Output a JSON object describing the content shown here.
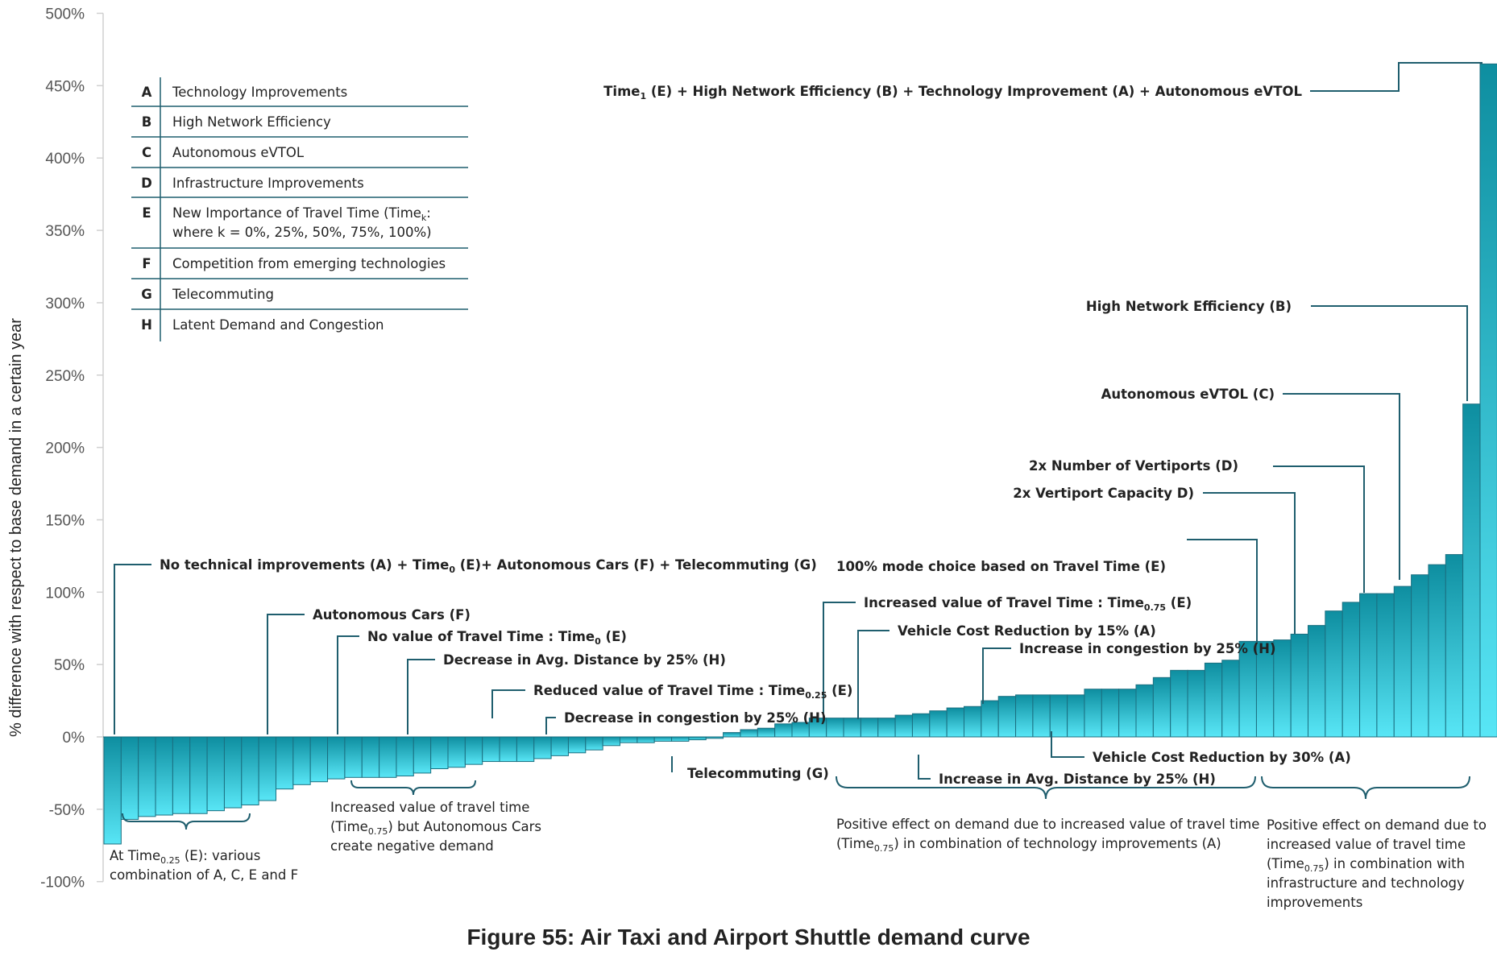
{
  "figure_caption": "Figure 55: Air Taxi and Airport Shuttle demand curve",
  "colors": {
    "bar_top": "#0e8ea0",
    "bar_bottom": "#58e6f6",
    "bar_outline": "#1b6f80",
    "leader": "#1f5e6e",
    "text": "#222222"
  },
  "chart_data": {
    "type": "bar",
    "ylabel": "% difference with respect to base  demand in a certain year",
    "ylim": [
      -100,
      500
    ],
    "y_ticks": [
      "500%",
      "450%",
      "400%",
      "350%",
      "300%",
      "250%",
      "200%",
      "150%",
      "100%",
      "50%",
      "0%",
      "-50%",
      "-100%"
    ],
    "grid": false,
    "legend_position": "top-left",
    "values": [
      -74,
      -57,
      -55,
      -54,
      -53,
      -53,
      -51,
      -49,
      -47,
      -44,
      -36,
      -33,
      -31,
      -29,
      -28,
      -28,
      -28,
      -27,
      -25,
      -22,
      -21,
      -19,
      -17,
      -17,
      -17,
      -15,
      -13,
      -11,
      -9,
      -6,
      -4,
      -4,
      -3,
      -3,
      -2,
      -1,
      3,
      5,
      6,
      9,
      10,
      13,
      13,
      13,
      13,
      13,
      15,
      16,
      18,
      20,
      21,
      25,
      28,
      29,
      29,
      29,
      29,
      33,
      33,
      33,
      36,
      41,
      46,
      46,
      51,
      53,
      66,
      66,
      67,
      71,
      77,
      87,
      93,
      99,
      99,
      104,
      112,
      119,
      126,
      230,
      465
    ],
    "legend": [
      {
        "key": "A",
        "text": "Technology Improvements"
      },
      {
        "key": "B",
        "text": "High Network Efficiency"
      },
      {
        "key": "C",
        "text": "Autonomous eVTOL"
      },
      {
        "key": "D",
        "text": "Infrastructure Improvements"
      },
      {
        "key": "E",
        "text": "New Importance of Travel Time (Time",
        "sub": "k",
        "text_after": ":",
        "text2": "where k = 0%, 25%, 50%, 75%, 100%)"
      },
      {
        "key": "F",
        "text": "Competition from emerging technologies"
      },
      {
        "key": "G",
        "text": "Telecommuting"
      },
      {
        "key": "H",
        "text": "Latent Demand and Congestion"
      }
    ],
    "annotations": [
      {
        "text": "No technical improvements (A) + Time",
        "sub": "0",
        "text_after": " (E)+ Autonomous Cars (F)  + Telecommuting (G)"
      },
      {
        "text": "Autonomous Cars (F)"
      },
      {
        "text": "No value of Travel Time : Time",
        "sub": "0",
        "text_after": " (E)"
      },
      {
        "text": "Decrease in Avg. Distance by 25% (H)"
      },
      {
        "text": "Reduced value of Travel Time : Time",
        "sub": "0.25",
        "text_after": " (E)"
      },
      {
        "text": "Decrease in congestion by 25% (H)"
      },
      {
        "text": "Telecommuting (G)"
      },
      {
        "text": "Increased value of Travel Time : Time",
        "sub": "0.75",
        "text_after": " (E)"
      },
      {
        "text": "Vehicle Cost Reduction by 15% (A)"
      },
      {
        "text": "Increase in congestion by 25% (H)"
      },
      {
        "text": "Vehicle Cost Reduction by 30% (A)"
      },
      {
        "text": "Increase in Avg. Distance by 25% (H)"
      },
      {
        "text": "100% mode choice based on Travel Time (E)"
      },
      {
        "text": "2x Vertiport Capacity D)"
      },
      {
        "text": "2x Number of Vertiports (D)"
      },
      {
        "text": "Autonomous eVTOL (C)"
      },
      {
        "text": "High Network Efficiency (B)"
      },
      {
        "text": "Time",
        "sub": "1",
        "text_after": " (E) + High Network Efficiency (B) + Technology Improvement (A) + Autonomous eVTOL"
      }
    ],
    "notes": [
      {
        "lines": [
          {
            "text": "At Time",
            "sub": "0.25",
            "text_after": " (E): various"
          },
          {
            "text": "combination of A, C, E and F"
          }
        ]
      },
      {
        "lines": [
          {
            "text": "Increased value of travel time"
          },
          {
            "text": "(Time",
            "sub": "0.75",
            "text_after": ") but Autonomous Cars"
          },
          {
            "text": "create negative demand"
          }
        ]
      },
      {
        "lines": [
          {
            "text": "Positive effect on demand due to increased value of travel time"
          },
          {
            "text": "(Time",
            "sub": "0.75",
            "text_after": ") in combination of technology improvements (A)"
          }
        ]
      },
      {
        "lines": [
          {
            "text": "Positive effect on demand due to"
          },
          {
            "text": "increased value of travel time"
          },
          {
            "text": "(Time",
            "sub": "0.75",
            "text_after": ") in combination with"
          },
          {
            "text": "infrastructure and technology"
          },
          {
            "text": "improvements"
          }
        ]
      }
    ]
  }
}
